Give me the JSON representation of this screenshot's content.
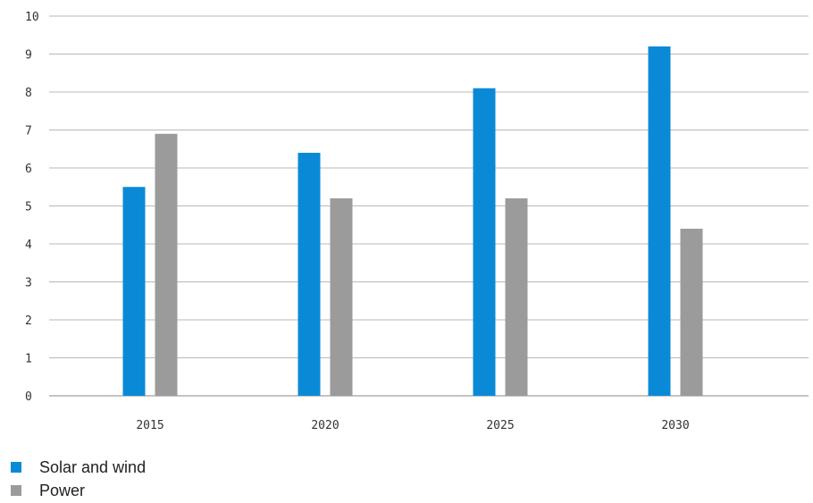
{
  "chart_data": {
    "type": "bar",
    "categories": [
      "2015",
      "2020",
      "2025",
      "2030"
    ],
    "series": [
      {
        "name": "Solar and wind",
        "values": [
          5.5,
          6.4,
          8.1,
          9.2
        ],
        "color": "#0a8ad6"
      },
      {
        "name": "Power",
        "values": [
          6.9,
          5.2,
          5.2,
          4.4
        ],
        "color": "#9b9b9b"
      }
    ],
    "yticks": [
      "0",
      "1",
      "2",
      "3",
      "4",
      "5",
      "6",
      "7",
      "8",
      "9",
      "10"
    ],
    "ylim": [
      0,
      10
    ],
    "grid": true,
    "legend_position": "bottom-left"
  }
}
